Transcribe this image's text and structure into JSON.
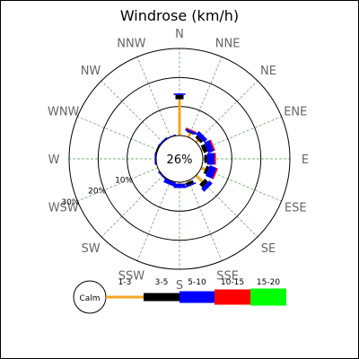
{
  "chart_data": {
    "type": "windrose",
    "title": "Windrose (km/h)",
    "directions": [
      "N",
      "NNE",
      "NE",
      "ENE",
      "E",
      "ESE",
      "SE",
      "SSE",
      "S",
      "SSW",
      "SW",
      "WSW",
      "W",
      "WNW",
      "NW",
      "NNW"
    ],
    "ring_labels": [
      "10%",
      "20%",
      "30%"
    ],
    "ring_values": [
      10,
      20,
      30
    ],
    "calm_label": "Calm",
    "calm_value": "26%",
    "series": [
      {
        "name": "1-3",
        "color": "#f5a623",
        "values": [
          12.5,
          1.5,
          1.0,
          0.5,
          0.5,
          1.5,
          3.0,
          0.5,
          0.5,
          0.0,
          0.0,
          0.0,
          0.0,
          0.0,
          0.0,
          0.0
        ]
      },
      {
        "name": "3-5",
        "color": "#000000",
        "values": [
          1.5,
          0.3,
          1.0,
          1.5,
          1.0,
          1.0,
          1.5,
          1.0,
          0.0,
          0.0,
          0.0,
          0.0,
          0.0,
          0.5,
          0.0,
          0.0
        ]
      },
      {
        "name": "5-10",
        "color": "#0000ff",
        "values": [
          0.5,
          0.7,
          1.5,
          2.0,
          2.5,
          2.5,
          1.5,
          0.5,
          1.5,
          1.5,
          0.5,
          0.0,
          0.5,
          0.0,
          0.5,
          0.3
        ]
      },
      {
        "name": "10-15",
        "color": "#ff0000",
        "values": [
          0.0,
          0.3,
          0.0,
          0.5,
          0.5,
          0.5,
          0.0,
          0.0,
          0.0,
          0.0,
          0.0,
          0.0,
          0.0,
          0.0,
          0.0,
          0.0
        ]
      },
      {
        "name": "15-20",
        "color": "#00ff00",
        "values": [
          0,
          0,
          0,
          0,
          0,
          0,
          0,
          0,
          0,
          0,
          0,
          0,
          0,
          0,
          0,
          0
        ]
      }
    ],
    "grid": true,
    "legend_position": "bottom"
  }
}
